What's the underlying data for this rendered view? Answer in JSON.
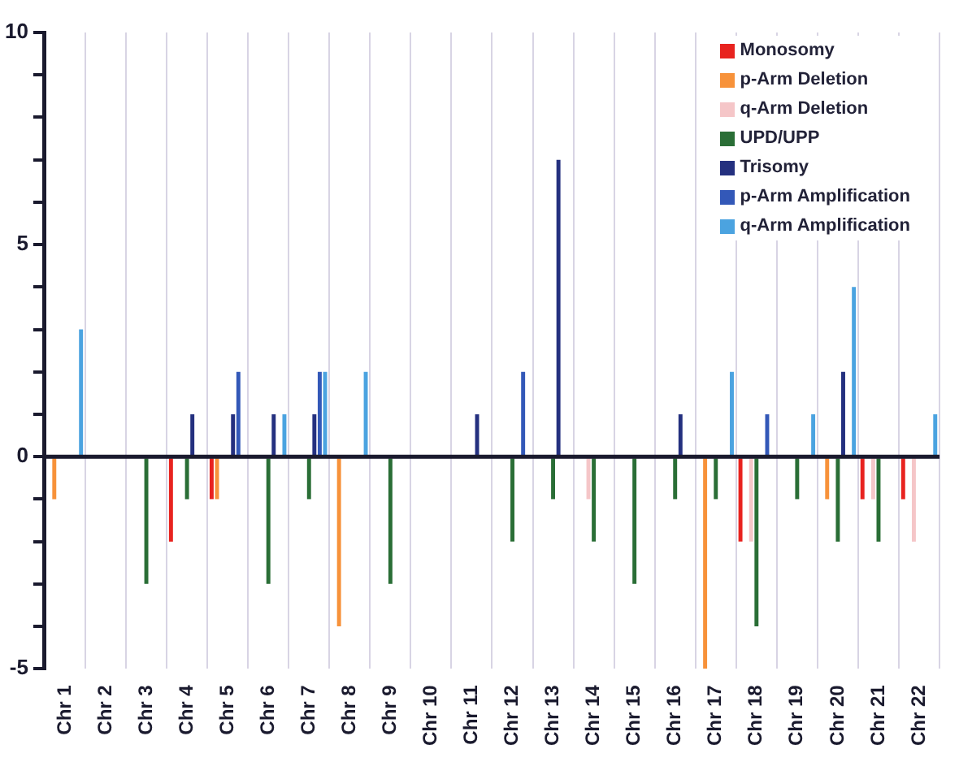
{
  "chart_data": {
    "type": "bar",
    "categories": [
      "Chr 1",
      "Chr 2",
      "Chr 3",
      "Chr 4",
      "Chr 5",
      "Chr 6",
      "Chr 7",
      "Chr 8",
      "Chr 9",
      "Chr 10",
      "Chr 11",
      "Chr 12",
      "Chr 13",
      "Chr 14",
      "Chr 15",
      "Chr 16",
      "Chr 17",
      "Chr 18",
      "Chr 19",
      "Chr 20",
      "Chr 21",
      "Chr 22"
    ],
    "ylim": [
      -5,
      10
    ],
    "yticks": [
      -5,
      {
        "value": -4,
        "label": null
      },
      {
        "value": -3,
        "label": null
      },
      {
        "value": -2,
        "label": null
      },
      {
        "value": -1,
        "label": null
      },
      0,
      {
        "value": 1,
        "label": null
      },
      {
        "value": 2,
        "label": null
      },
      {
        "value": 3,
        "label": null
      },
      {
        "value": 4,
        "label": null
      },
      5,
      {
        "value": 6,
        "label": null
      },
      {
        "value": 7,
        "label": null
      },
      {
        "value": 8,
        "label": null
      },
      {
        "value": 9,
        "label": null
      },
      10
    ],
    "grid": "x",
    "legend": "top right",
    "series": [
      {
        "name": "Monosomy",
        "color": "#e8231f",
        "values": [
          null,
          null,
          null,
          -2,
          -1,
          null,
          null,
          null,
          null,
          null,
          null,
          null,
          null,
          null,
          null,
          null,
          null,
          -2,
          null,
          null,
          -1,
          -1
        ]
      },
      {
        "name": "p-Arm Deletion",
        "color": "#f7923a",
        "values": [
          -1,
          null,
          null,
          null,
          -1,
          null,
          null,
          -4,
          null,
          null,
          null,
          null,
          null,
          null,
          null,
          null,
          -5,
          null,
          null,
          -1,
          null,
          null
        ]
      },
      {
        "name": "q-Arm Deletion",
        "color": "#f5c6c8",
        "values": [
          null,
          null,
          null,
          null,
          null,
          null,
          null,
          null,
          null,
          null,
          null,
          null,
          null,
          -1,
          null,
          null,
          null,
          -2,
          null,
          null,
          -1,
          -2
        ]
      },
      {
        "name": "UPD/UPP",
        "color": "#2a6e36",
        "values": [
          null,
          null,
          -3,
          -1,
          null,
          -3,
          -1,
          null,
          -3,
          null,
          null,
          -2,
          -1,
          -2,
          -3,
          -1,
          -1,
          -4,
          -1,
          -2,
          -2,
          null
        ]
      },
      {
        "name": "Trisomy",
        "color": "#24307f",
        "values": [
          null,
          null,
          null,
          1,
          1,
          1,
          1,
          null,
          null,
          null,
          1,
          null,
          7,
          null,
          null,
          1,
          null,
          null,
          null,
          2,
          null,
          null
        ]
      },
      {
        "name": "p-Arm Amplification",
        "color": "#3358b8",
        "values": [
          null,
          null,
          null,
          null,
          2,
          null,
          2,
          null,
          null,
          null,
          null,
          2,
          null,
          null,
          null,
          null,
          null,
          1,
          null,
          null,
          null,
          null
        ]
      },
      {
        "name": "q-Arm Amplification",
        "color": "#4ba3e0",
        "values": [
          3,
          null,
          null,
          null,
          null,
          1,
          2,
          2,
          null,
          null,
          null,
          null,
          null,
          null,
          null,
          null,
          2,
          null,
          1,
          4,
          null,
          1
        ]
      }
    ]
  }
}
